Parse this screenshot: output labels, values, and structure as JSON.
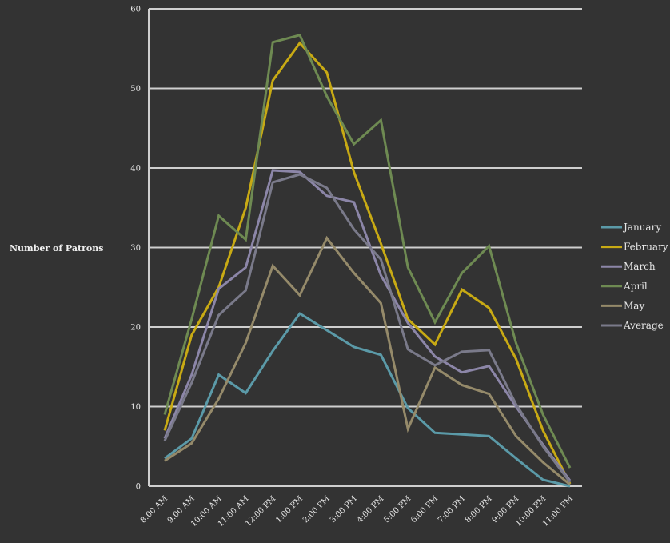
{
  "chart_data": {
    "type": "line",
    "title": "",
    "xlabel": "",
    "ylabel": "Number of Patrons",
    "ylim": [
      0,
      60
    ],
    "yticks": [
      0,
      10,
      20,
      30,
      40,
      50,
      60
    ],
    "grid": true,
    "legend_position": "right",
    "categories": [
      "8:00 AM",
      "9:00 AM",
      "10:00 AM",
      "11:00 AM",
      "12:00 PM",
      "1:00 PM",
      "2:00 PM",
      "3:00 PM",
      "4:00 PM",
      "5:00 PM",
      "6:00 PM",
      "7:00 PM",
      "8:00 PM",
      "9:00 PM",
      "10:00 PM",
      "11:00 PM"
    ],
    "series": [
      {
        "name": "January",
        "color": "#5b9aa8",
        "values": [
          3.5,
          6,
          14,
          11.7,
          17,
          21.7,
          19.6,
          17.5,
          16.5,
          9.8,
          6.7,
          6.5,
          6.3,
          3.5,
          0.8,
          0
        ]
      },
      {
        "name": "February",
        "color": "#c8aa14",
        "values": [
          7,
          19,
          25,
          35,
          51,
          55.7,
          52,
          39.5,
          30.5,
          21,
          17.8,
          24.7,
          22.4,
          16,
          7,
          0.3
        ]
      },
      {
        "name": "March",
        "color": "#8c86a8",
        "values": [
          6,
          14,
          24.8,
          27.5,
          39.7,
          39.5,
          36.5,
          35.7,
          26.5,
          20.5,
          16.3,
          14.3,
          15.1,
          10,
          5.2,
          0.7
        ]
      },
      {
        "name": "April",
        "color": "#6e8a52",
        "values": [
          9,
          21,
          34,
          31,
          55.8,
          56.7,
          49,
          43,
          46,
          27.5,
          20.6,
          26.8,
          30.2,
          18,
          9,
          2.3
        ]
      },
      {
        "name": "May",
        "color": "#958a6a",
        "values": [
          3.2,
          5.4,
          11,
          18,
          27.7,
          24,
          31.2,
          26.8,
          23,
          7.2,
          14.9,
          12.7,
          11.6,
          6.3,
          3,
          0.2
        ]
      },
      {
        "name": "Average",
        "color": "#7a7a8a",
        "values": [
          5.7,
          13,
          21.5,
          24.6,
          38.2,
          39.2,
          37.5,
          32.3,
          28.5,
          17.2,
          15.2,
          16.9,
          17.1,
          10.3,
          5,
          0.5
        ]
      }
    ]
  }
}
